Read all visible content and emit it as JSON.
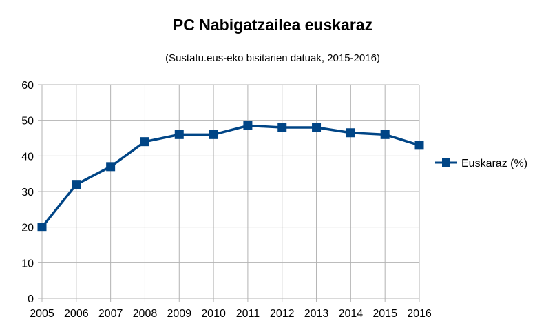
{
  "chart_data": {
    "type": "line",
    "title": "PC Nabigatzailea euskaraz",
    "subtitle": "(Sustatu.eus-eko bisitarien datuak, 2015-2016)",
    "xlabel": "",
    "ylabel": "",
    "categories": [
      "2005",
      "2006",
      "2007",
      "2008",
      "2009",
      "2010",
      "2011",
      "2012",
      "2013",
      "2014",
      "2015",
      "2016"
    ],
    "series": [
      {
        "name": "Euskaraz (%)",
        "values": [
          20,
          32,
          37,
          44,
          46,
          46,
          48.5,
          48,
          48,
          46.5,
          46,
          43
        ],
        "color": "#004586"
      }
    ],
    "ylim": [
      0,
      60
    ],
    "yticks": [
      0,
      10,
      20,
      30,
      40,
      50,
      60
    ],
    "grid": true,
    "legend": "right"
  }
}
